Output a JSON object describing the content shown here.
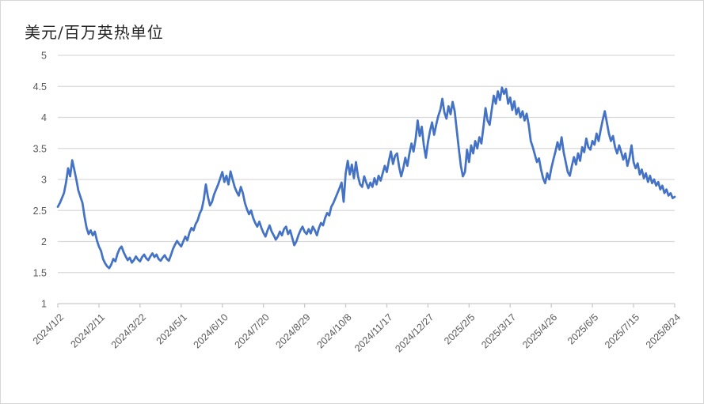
{
  "chart_data": {
    "type": "line",
    "title": "美元/百万英热单位",
    "xlabel": "",
    "ylabel": "",
    "ylim": [
      1,
      5
    ],
    "y_tick_step": 0.5,
    "y_tick_labels": [
      "5",
      "4.5",
      "4",
      "3.5",
      "3",
      "2.5",
      "2",
      "1.5",
      "1"
    ],
    "x_tick_labels": [
      "2024/1/2",
      "2024/2/11",
      "2024/3/22",
      "2024/5/1",
      "2024/6/10",
      "2024/7/20",
      "2024/8/29",
      "2024/10/8",
      "2024/11/17",
      "2024/12/27",
      "2025/2/5",
      "2025/3/17",
      "2025/4/26",
      "2025/6/5",
      "2025/7/15",
      "2025/8/24"
    ],
    "grid": true,
    "legend": "none",
    "series": [
      {
        "name": "美元/百万英热单位",
        "color": "#4472C4",
        "values": [
          2.56,
          2.62,
          2.7,
          2.78,
          2.95,
          3.18,
          3.05,
          3.31,
          3.16,
          3.0,
          2.82,
          2.72,
          2.62,
          2.4,
          2.22,
          2.12,
          2.18,
          2.1,
          2.16,
          2.02,
          1.92,
          1.85,
          1.72,
          1.65,
          1.6,
          1.57,
          1.63,
          1.72,
          1.68,
          1.8,
          1.88,
          1.92,
          1.83,
          1.76,
          1.7,
          1.74,
          1.66,
          1.7,
          1.76,
          1.71,
          1.68,
          1.75,
          1.79,
          1.73,
          1.7,
          1.76,
          1.81,
          1.75,
          1.79,
          1.72,
          1.69,
          1.74,
          1.78,
          1.72,
          1.69,
          1.78,
          1.88,
          1.95,
          2.01,
          1.96,
          1.92,
          2.0,
          2.08,
          2.02,
          2.14,
          2.22,
          2.18,
          2.28,
          2.34,
          2.45,
          2.52,
          2.68,
          2.92,
          2.72,
          2.58,
          2.64,
          2.76,
          2.84,
          2.92,
          3.02,
          3.12,
          2.96,
          3.06,
          2.92,
          3.13,
          3.0,
          2.88,
          2.8,
          2.74,
          2.88,
          2.78,
          2.62,
          2.52,
          2.44,
          2.5,
          2.38,
          2.3,
          2.24,
          2.32,
          2.22,
          2.14,
          2.08,
          2.18,
          2.26,
          2.16,
          2.1,
          2.03,
          2.08,
          2.16,
          2.1,
          2.2,
          2.24,
          2.12,
          2.18,
          2.06,
          1.94,
          2.0,
          2.1,
          2.18,
          2.24,
          2.16,
          2.12,
          2.2,
          2.13,
          2.24,
          2.18,
          2.1,
          2.22,
          2.3,
          2.26,
          2.38,
          2.46,
          2.42,
          2.56,
          2.62,
          2.7,
          2.78,
          2.86,
          2.95,
          2.64,
          3.1,
          3.3,
          3.08,
          3.24,
          3.02,
          3.28,
          3.05,
          2.92,
          2.88,
          3.05,
          2.95,
          2.86,
          2.95,
          2.88,
          3.02,
          2.92,
          3.06,
          2.98,
          3.1,
          3.22,
          3.12,
          3.3,
          3.45,
          3.25,
          3.38,
          3.42,
          3.2,
          3.05,
          3.18,
          3.35,
          3.22,
          3.42,
          3.58,
          3.45,
          3.65,
          3.95,
          3.7,
          3.85,
          3.55,
          3.35,
          3.6,
          3.78,
          3.92,
          3.72,
          3.88,
          4.02,
          4.12,
          4.3,
          4.08,
          3.98,
          4.18,
          4.05,
          4.25,
          4.1,
          3.8,
          3.5,
          3.22,
          3.05,
          3.12,
          3.48,
          3.28,
          3.55,
          3.42,
          3.62,
          3.5,
          3.68,
          3.58,
          3.85,
          4.15,
          3.95,
          3.88,
          4.12,
          4.35,
          4.22,
          4.42,
          4.28,
          4.48,
          4.38,
          4.46,
          4.22,
          4.32,
          4.12,
          4.26,
          4.05,
          4.15,
          4.0,
          4.1,
          3.95,
          4.06,
          3.88,
          3.62,
          3.52,
          3.4,
          3.28,
          3.34,
          3.16,
          3.02,
          2.94,
          3.1,
          3.0,
          3.18,
          3.32,
          3.45,
          3.6,
          3.48,
          3.68,
          3.44,
          3.28,
          3.12,
          3.06,
          3.22,
          3.36,
          3.24,
          3.42,
          3.3,
          3.52,
          3.44,
          3.66,
          3.52,
          3.48,
          3.62,
          3.56,
          3.74,
          3.62,
          3.8,
          3.96,
          4.1,
          3.92,
          3.74,
          3.62,
          3.7,
          3.52,
          3.42,
          3.55,
          3.44,
          3.32,
          3.42,
          3.22,
          3.35,
          3.55,
          3.28,
          3.18,
          3.26,
          3.08,
          3.16,
          3.02,
          3.1,
          2.96,
          3.06,
          2.94,
          3.0,
          2.9,
          2.96,
          2.84,
          2.9,
          2.78,
          2.84,
          2.74,
          2.78,
          2.7,
          2.72
        ]
      }
    ],
    "colors": {
      "line": "#4472C4",
      "gridline": "#D9D9D9",
      "axis": "#C9C9C9",
      "tick_label": "#595959",
      "title": "#262626",
      "frame_border": "#D6D6D6",
      "background": "#FFFFFF"
    }
  }
}
